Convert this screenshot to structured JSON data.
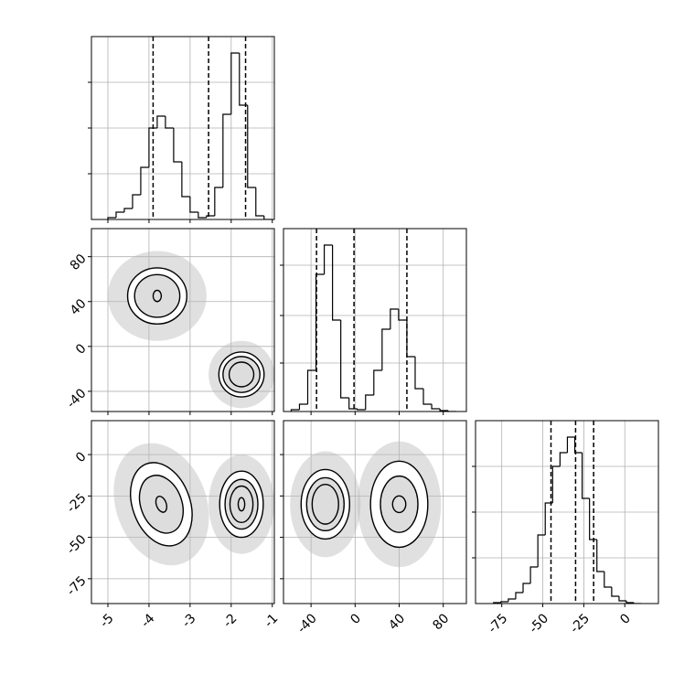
{
  "chart_data": [
    {
      "type": "histogram",
      "xlim": [
        -5.4,
        -0.95
      ],
      "ylim": [
        0,
        200
      ],
      "xticks": [
        -5,
        -4,
        -3,
        -2,
        -1
      ],
      "yticks": [
        50,
        100,
        150
      ],
      "show_xticklabels": false,
      "show_yticklabels": false,
      "grid": true,
      "bins": [
        -5.0,
        -4.8,
        -4.6,
        -4.4,
        -4.2,
        -4.0,
        -3.8,
        -3.6,
        -3.4,
        -3.2,
        -3.0,
        -2.8,
        -2.6,
        -2.4,
        -2.2,
        -2.0,
        -1.8,
        -1.6,
        -1.4,
        -1.2,
        -1.0
      ],
      "values": [
        2,
        8,
        12,
        27,
        57,
        100,
        113,
        100,
        63,
        25,
        8,
        2,
        4,
        35,
        115,
        182,
        125,
        35,
        4,
        0
      ],
      "quantiles": [
        -3.9,
        -2.55,
        -1.65
      ]
    },
    {
      "type": "contour",
      "xlim": [
        -5.4,
        -0.95
      ],
      "ylim": [
        -58,
        105
      ],
      "xticks": [
        -5,
        -4,
        -3,
        -2,
        -1
      ],
      "yticks": [
        -40,
        0,
        40,
        80
      ],
      "show_xticklabels": false,
      "show_yticklabels": true,
      "grid": true,
      "clusters": [
        {
          "cx": -3.8,
          "cy": 45,
          "rot": 0,
          "spread": [
            1.2,
            40
          ],
          "levels": [
            [
              0.72,
              25
            ],
            [
              0.55,
              19
            ],
            [
              0.1,
              5
            ]
          ]
        },
        {
          "cx": -1.75,
          "cy": -25,
          "rot": 0,
          "spread": [
            0.8,
            30
          ],
          "levels": [
            [
              0.55,
              20
            ],
            [
              0.45,
              16
            ],
            [
              0.3,
              11
            ]
          ]
        }
      ]
    },
    {
      "type": "histogram",
      "xlim": [
        -65,
        101
      ],
      "ylim": [
        0,
        200
      ],
      "xticks": [
        -40,
        0,
        40,
        80
      ],
      "yticks": [
        53,
        105,
        160
      ],
      "show_xticklabels": false,
      "show_yticklabels": false,
      "grid": true,
      "bins": [
        -58,
        -50.5,
        -43,
        -35.5,
        -28,
        -20.5,
        -13,
        -5.5,
        2,
        9.5,
        17,
        24.5,
        32,
        39.5,
        47,
        54.5,
        62,
        69.5,
        77,
        84.5,
        92
      ],
      "values": [
        2,
        8,
        45,
        150,
        182,
        100,
        15,
        3,
        2,
        18,
        45,
        90,
        112,
        100,
        60,
        25,
        8,
        3,
        1,
        0
      ],
      "quantiles": [
        -35,
        -1,
        47
      ]
    },
    {
      "type": "contour",
      "xlim": [
        -5.4,
        -0.95
      ],
      "ylim": [
        -90,
        20.5
      ],
      "xticks": [
        -5,
        -4,
        -3,
        -2,
        -1
      ],
      "yticks": [
        -75,
        -50,
        -25,
        0
      ],
      "show_xticklabels": true,
      "show_yticklabels": true,
      "grid": true,
      "clusters": [
        {
          "cx": -3.7,
          "cy": -30,
          "rot": -20,
          "spread": [
            1.1,
            38
          ],
          "levels": [
            [
              0.7,
              26
            ],
            [
              0.5,
              18
            ],
            [
              0.12,
              5
            ]
          ]
        },
        {
          "cx": -1.75,
          "cy": -30,
          "rot": 0,
          "spread": [
            0.8,
            30
          ],
          "levels": [
            [
              0.53,
              20
            ],
            [
              0.4,
              15
            ],
            [
              0.28,
              11
            ],
            [
              0.08,
              4
            ]
          ]
        }
      ]
    },
    {
      "type": "contour",
      "xlim": [
        -65,
        101
      ],
      "ylim": [
        -90,
        20.5
      ],
      "xticks": [
        -40,
        0,
        40,
        80
      ],
      "yticks": [
        -75,
        -50,
        -25,
        0
      ],
      "show_xticklabels": true,
      "show_yticklabels": false,
      "grid": true,
      "clusters": [
        {
          "cx": -27,
          "cy": -30,
          "rot": 0,
          "spread": [
            32,
            32
          ],
          "levels": [
            [
              22,
              21
            ],
            [
              17,
              16
            ],
            [
              12,
              12
            ]
          ]
        },
        {
          "cx": 40,
          "cy": -30,
          "rot": 0,
          "spread": [
            38,
            38
          ],
          "levels": [
            [
              26,
              26
            ],
            [
              17,
              17
            ],
            [
              6,
              5
            ]
          ]
        }
      ]
    },
    {
      "type": "histogram",
      "xlim": [
        -91,
        20.5
      ],
      "ylim": [
        0,
        200
      ],
      "xticks": [
        -75,
        -50,
        -25,
        0
      ],
      "yticks": [
        50,
        100,
        150
      ],
      "show_xticklabels": true,
      "show_yticklabels": false,
      "grid": true,
      "bins": [
        -80,
        -75.5,
        -71,
        -66.5,
        -62,
        -57.5,
        -53,
        -48.5,
        -44,
        -39.5,
        -35,
        -30.5,
        -26,
        -21.5,
        -17,
        -12.5,
        -8,
        -3.5,
        1,
        5.5,
        10
      ],
      "values": [
        1,
        2,
        5,
        12,
        22,
        40,
        75,
        110,
        150,
        165,
        182,
        165,
        115,
        70,
        35,
        18,
        8,
        3,
        1,
        0
      ],
      "quantiles": [
        -45,
        -30,
        -19
      ]
    }
  ]
}
